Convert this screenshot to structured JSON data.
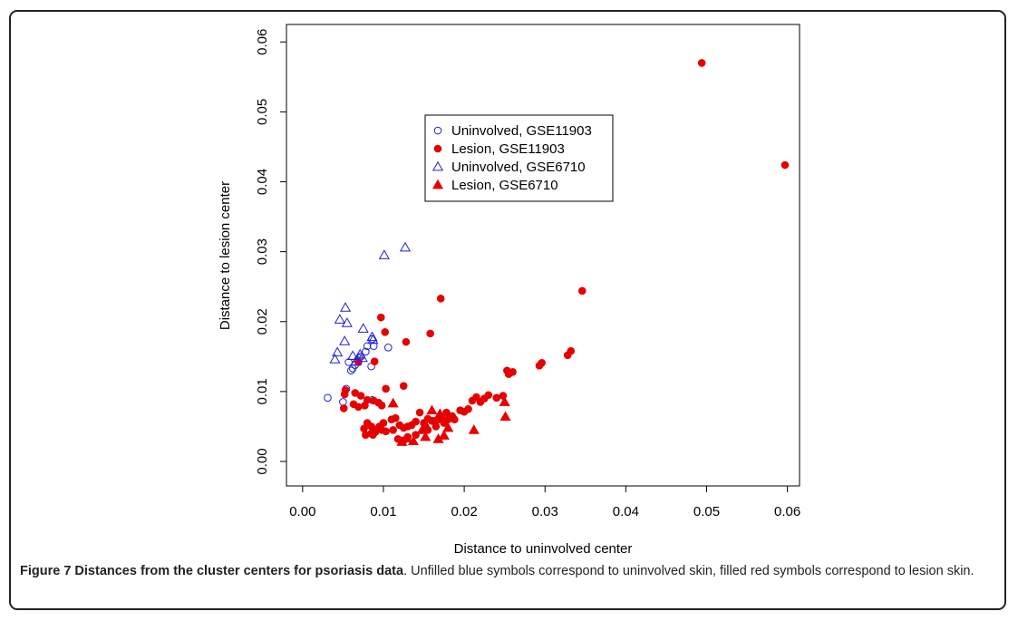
{
  "figure": {
    "caption_bold": "Figure 7 Distances from the cluster centers for psoriasis data",
    "caption_rest": ". Unfilled blue symbols correspond to uninvolved skin, filled red symbols correspond to lesion skin."
  },
  "chart_data": {
    "type": "scatter",
    "xlabel": "Distance to uninvolved center",
    "ylabel": "Distance to lesion center",
    "xlim": [
      -0.002,
      0.0615
    ],
    "ylim": [
      -0.0035,
      0.0625
    ],
    "xticks": [
      0.0,
      0.01,
      0.02,
      0.03,
      0.04,
      0.05,
      0.06
    ],
    "yticks": [
      0.0,
      0.01,
      0.02,
      0.03,
      0.04,
      0.05,
      0.06
    ],
    "xtick_labels": [
      "0.00",
      "0.01",
      "0.02",
      "0.03",
      "0.04",
      "0.05",
      "0.06"
    ],
    "ytick_labels": [
      "0.00",
      "0.01",
      "0.02",
      "0.03",
      "0.04",
      "0.05",
      "0.06"
    ],
    "grid": false,
    "legend_position": "upper-center",
    "series": [
      {
        "name": "Uninvolved, GSE11903",
        "marker": "circle-open",
        "color": "#1f1fd6",
        "points": [
          [
            0.0031,
            0.0091
          ],
          [
            0.005,
            0.0085
          ],
          [
            0.0054,
            0.0104
          ],
          [
            0.0057,
            0.0142
          ],
          [
            0.006,
            0.013
          ],
          [
            0.0062,
            0.0133
          ],
          [
            0.0065,
            0.0138
          ],
          [
            0.0068,
            0.0145
          ],
          [
            0.0072,
            0.015
          ],
          [
            0.0078,
            0.0157
          ],
          [
            0.008,
            0.0165
          ],
          [
            0.0085,
            0.0136
          ],
          [
            0.0086,
            0.0088
          ],
          [
            0.0088,
            0.0165
          ],
          [
            0.0106,
            0.0163
          ],
          [
            0.0086,
            0.0175
          ],
          [
            0.007,
            0.0148
          ]
        ]
      },
      {
        "name": "Lesion, GSE11903",
        "marker": "circle-filled",
        "color": "#e60000",
        "points": [
          [
            0.0494,
            0.057
          ],
          [
            0.0597,
            0.0424
          ],
          [
            0.0346,
            0.0244
          ],
          [
            0.0171,
            0.0233
          ],
          [
            0.0097,
            0.0206
          ],
          [
            0.0102,
            0.0185
          ],
          [
            0.0158,
            0.0183
          ],
          [
            0.0128,
            0.0171
          ],
          [
            0.0089,
            0.0143
          ],
          [
            0.0069,
            0.0142
          ],
          [
            0.0332,
            0.0158
          ],
          [
            0.0328,
            0.0152
          ],
          [
            0.0296,
            0.0141
          ],
          [
            0.0293,
            0.0137
          ],
          [
            0.026,
            0.0128
          ],
          [
            0.0253,
            0.013
          ],
          [
            0.0255,
            0.0125
          ],
          [
            0.0125,
            0.0108
          ],
          [
            0.0053,
            0.0102
          ],
          [
            0.0052,
            0.0096
          ],
          [
            0.0065,
            0.0098
          ],
          [
            0.0072,
            0.0094
          ],
          [
            0.008,
            0.0088
          ],
          [
            0.0088,
            0.0087
          ],
          [
            0.0094,
            0.0084
          ],
          [
            0.0098,
            0.008
          ],
          [
            0.0103,
            0.0104
          ],
          [
            0.0063,
            0.0082
          ],
          [
            0.0069,
            0.0078
          ],
          [
            0.0077,
            0.008
          ],
          [
            0.0051,
            0.0076
          ],
          [
            0.0248,
            0.0094
          ],
          [
            0.024,
            0.0091
          ],
          [
            0.023,
            0.0095
          ],
          [
            0.0225,
            0.009
          ],
          [
            0.0215,
            0.0092
          ],
          [
            0.021,
            0.0087
          ],
          [
            0.022,
            0.0085
          ],
          [
            0.0205,
            0.0075
          ],
          [
            0.02,
            0.0071
          ],
          [
            0.0195,
            0.0073
          ],
          [
            0.0185,
            0.0065
          ],
          [
            0.0178,
            0.007
          ],
          [
            0.0172,
            0.0063
          ],
          [
            0.0168,
            0.006
          ],
          [
            0.0162,
            0.0058
          ],
          [
            0.0155,
            0.0061
          ],
          [
            0.015,
            0.0055
          ],
          [
            0.0145,
            0.007
          ],
          [
            0.014,
            0.0057
          ],
          [
            0.0135,
            0.0052
          ],
          [
            0.013,
            0.005
          ],
          [
            0.0125,
            0.0048
          ],
          [
            0.012,
            0.0052
          ],
          [
            0.0115,
            0.0062
          ],
          [
            0.011,
            0.006
          ],
          [
            0.01,
            0.0055
          ],
          [
            0.0095,
            0.005
          ],
          [
            0.009,
            0.0045
          ],
          [
            0.0085,
            0.005
          ],
          [
            0.008,
            0.0055
          ],
          [
            0.0076,
            0.0047
          ],
          [
            0.0085,
            0.004
          ],
          [
            0.009,
            0.0042
          ],
          [
            0.0078,
            0.0038
          ],
          [
            0.0098,
            0.0045
          ],
          [
            0.0103,
            0.0043
          ],
          [
            0.0118,
            0.0032
          ],
          [
            0.0125,
            0.003
          ],
          [
            0.013,
            0.0035
          ],
          [
            0.014,
            0.0038
          ],
          [
            0.0155,
            0.0045
          ],
          [
            0.0165,
            0.005
          ],
          [
            0.0175,
            0.0055
          ],
          [
            0.018,
            0.006
          ],
          [
            0.0188,
            0.006
          ],
          [
            0.016,
            0.0058
          ],
          [
            0.0152,
            0.005
          ],
          [
            0.0112,
            0.0045
          ],
          [
            0.0087,
            0.0038
          ]
        ]
      },
      {
        "name": "Uninvolved, GSE6710",
        "marker": "triangle-open",
        "color": "#1f1fd6",
        "points": [
          [
            0.0127,
            0.0306
          ],
          [
            0.0101,
            0.0295
          ],
          [
            0.0053,
            0.022
          ],
          [
            0.0046,
            0.0203
          ],
          [
            0.0055,
            0.0198
          ],
          [
            0.0075,
            0.019
          ],
          [
            0.0086,
            0.0178
          ],
          [
            0.0052,
            0.0172
          ],
          [
            0.0087,
            0.0174
          ],
          [
            0.0043,
            0.0156
          ],
          [
            0.004,
            0.0146
          ],
          [
            0.0062,
            0.0151
          ],
          [
            0.0071,
            0.0153
          ],
          [
            0.0074,
            0.0148
          ],
          [
            0.0066,
            0.0143
          ]
        ]
      },
      {
        "name": "Lesion, GSE6710",
        "marker": "triangle-filled",
        "color": "#e60000",
        "points": [
          [
            0.025,
            0.0085
          ],
          [
            0.0251,
            0.0064
          ],
          [
            0.0212,
            0.0045
          ],
          [
            0.018,
            0.0048
          ],
          [
            0.0175,
            0.0037
          ],
          [
            0.0168,
            0.0032
          ],
          [
            0.016,
            0.0073
          ],
          [
            0.0152,
            0.0035
          ],
          [
            0.0137,
            0.0029
          ],
          [
            0.0129,
            0.0033
          ],
          [
            0.0123,
            0.0028
          ],
          [
            0.0112,
            0.0083
          ],
          [
            0.0148,
            0.0045
          ],
          [
            0.017,
            0.0068
          ]
        ]
      }
    ]
  }
}
